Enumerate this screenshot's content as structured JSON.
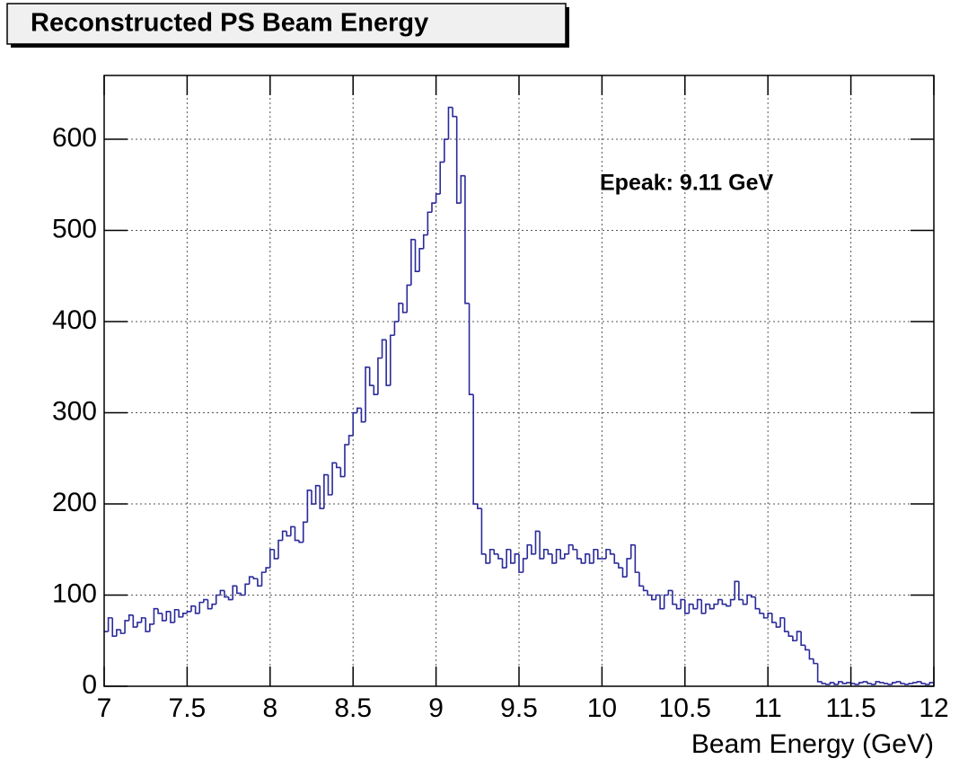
{
  "chart_data": {
    "type": "histogram",
    "title": "Reconstructed PS Beam Energy",
    "xlabel": "Beam Energy (GeV)",
    "annotation": "Epeak: 9.11 GeV",
    "color": "#2a2a9a",
    "grid": true,
    "xlim": [
      7,
      12
    ],
    "ylim": [
      0,
      670
    ],
    "xticks": [
      7,
      7.5,
      8,
      8.5,
      9,
      9.5,
      10,
      10.5,
      11,
      11.5,
      12
    ],
    "yticks": [
      0,
      100,
      200,
      300,
      400,
      500,
      600
    ],
    "bins": [
      7,
      7.025,
      7.05,
      7.075,
      7.1,
      7.125,
      7.15,
      7.175,
      7.2,
      7.225,
      7.25,
      7.275,
      7.3,
      7.325,
      7.35,
      7.375,
      7.4,
      7.425,
      7.45,
      7.475,
      7.5,
      7.525,
      7.55,
      7.575,
      7.6,
      7.625,
      7.65,
      7.675,
      7.7,
      7.725,
      7.75,
      7.775,
      7.8,
      7.825,
      7.85,
      7.875,
      7.9,
      7.925,
      7.95,
      7.975,
      8,
      8.025,
      8.05,
      8.075,
      8.1,
      8.125,
      8.15,
      8.175,
      8.2,
      8.225,
      8.25,
      8.275,
      8.3,
      8.325,
      8.35,
      8.375,
      8.4,
      8.425,
      8.45,
      8.475,
      8.5,
      8.525,
      8.55,
      8.575,
      8.6,
      8.625,
      8.65,
      8.675,
      8.7,
      8.725,
      8.75,
      8.775,
      8.8,
      8.825,
      8.85,
      8.875,
      8.9,
      8.925,
      8.95,
      8.975,
      9,
      9.025,
      9.05,
      9.075,
      9.1,
      9.125,
      9.15,
      9.175,
      9.2,
      9.225,
      9.25,
      9.275,
      9.3,
      9.325,
      9.35,
      9.375,
      9.4,
      9.425,
      9.45,
      9.475,
      9.5,
      9.525,
      9.55,
      9.575,
      9.6,
      9.625,
      9.65,
      9.675,
      9.7,
      9.725,
      9.75,
      9.775,
      9.8,
      9.825,
      9.85,
      9.875,
      9.9,
      9.925,
      9.95,
      9.975,
      10,
      10.025,
      10.05,
      10.075,
      10.1,
      10.125,
      10.15,
      10.175,
      10.2,
      10.225,
      10.25,
      10.275,
      10.3,
      10.325,
      10.35,
      10.375,
      10.4,
      10.425,
      10.45,
      10.475,
      10.5,
      10.525,
      10.55,
      10.575,
      10.6,
      10.625,
      10.65,
      10.675,
      10.7,
      10.725,
      10.75,
      10.775,
      10.8,
      10.825,
      10.85,
      10.875,
      10.9,
      10.925,
      10.95,
      10.975,
      11,
      11.025,
      11.05,
      11.075,
      11.1,
      11.125,
      11.15,
      11.175,
      11.2,
      11.225,
      11.25,
      11.275,
      11.3,
      11.325,
      11.35,
      11.375,
      11.4,
      11.425,
      11.45,
      11.475,
      11.5,
      11.525,
      11.55,
      11.575,
      11.6,
      11.625,
      11.65,
      11.675,
      11.7,
      11.725,
      11.75,
      11.775,
      11.8,
      11.825,
      11.85,
      11.875,
      11.9,
      11.925,
      11.95,
      11.975,
      12
    ],
    "counts": [
      60,
      75,
      55,
      62,
      58,
      72,
      78,
      65,
      70,
      75,
      60,
      68,
      85,
      80,
      72,
      82,
      70,
      84,
      76,
      80,
      82,
      88,
      80,
      92,
      95,
      85,
      90,
      100,
      105,
      98,
      95,
      110,
      102,
      100,
      112,
      120,
      118,
      110,
      125,
      130,
      150,
      140,
      160,
      170,
      165,
      175,
      160,
      158,
      180,
      215,
      200,
      220,
      195,
      232,
      210,
      245,
      240,
      230,
      265,
      275,
      300,
      305,
      290,
      350,
      330,
      320,
      360,
      380,
      330,
      385,
      400,
      420,
      410,
      440,
      490,
      455,
      480,
      495,
      520,
      530,
      540,
      575,
      600,
      635,
      625,
      530,
      560,
      420,
      320,
      200,
      195,
      145,
      135,
      150,
      145,
      140,
      130,
      150,
      135,
      145,
      125,
      140,
      155,
      145,
      170,
      140,
      150,
      145,
      135,
      150,
      140,
      145,
      155,
      150,
      140,
      135,
      145,
      135,
      150,
      140,
      140,
      150,
      145,
      135,
      130,
      120,
      140,
      155,
      125,
      110,
      105,
      100,
      95,
      100,
      85,
      100,
      105,
      90,
      85,
      95,
      80,
      90,
      85,
      95,
      80,
      90,
      85,
      90,
      95,
      90,
      88,
      95,
      115,
      95,
      90,
      100,
      98,
      85,
      80,
      75,
      80,
      70,
      65,
      75,
      60,
      55,
      50,
      60,
      45,
      40,
      30,
      25,
      5,
      3,
      2,
      4,
      2,
      5,
      3,
      4,
      3,
      2,
      4,
      5,
      3,
      2,
      5,
      4,
      3,
      2,
      4,
      5,
      3,
      2,
      3,
      4,
      5,
      3,
      2,
      4
    ]
  }
}
